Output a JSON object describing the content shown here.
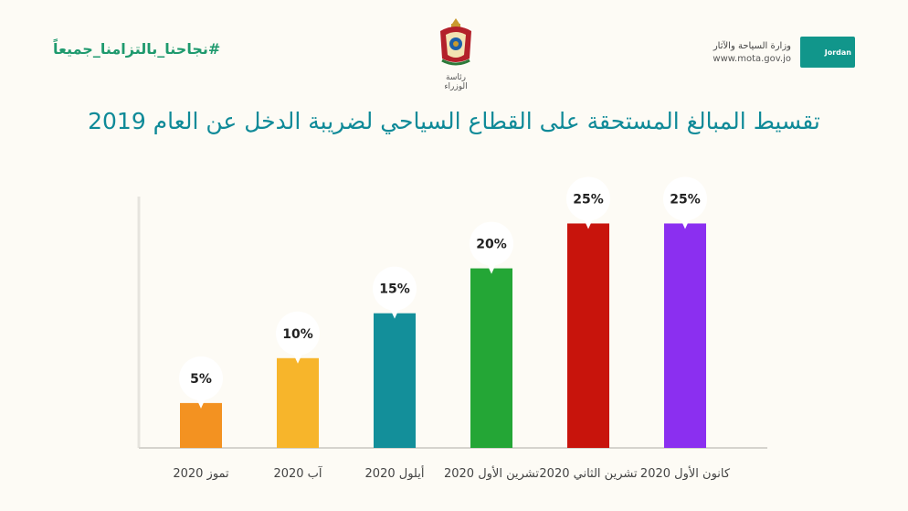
{
  "header": {
    "hashtag": "#نجاحنا_بالتزامنا_جميعاً",
    "center_caption": "رئاسة الوزراء",
    "ministry_name": "وزارة السياحة والآثار",
    "ministry_url": "www.mota.gov.jo",
    "badge_text": "Jordan"
  },
  "colors": {
    "title": "#0f8a98",
    "hashtag": "#1f9a6e"
  },
  "chart_data": {
    "type": "bar",
    "title": "تقسيط المبالغ المستحقة على القطاع السياحي لضريبة الدخل عن العام 2019",
    "categories": [
      "تموز 2020",
      "آب 2020",
      "أيلول 2020",
      "تشرين الأول 2020",
      "تشرين الثاني 2020",
      "كانون الأول 2020"
    ],
    "values": [
      5,
      10,
      15,
      20,
      25,
      25
    ],
    "value_labels": [
      "5%",
      "10%",
      "15%",
      "20%",
      "25%",
      "25%"
    ],
    "colors": [
      "#f39221",
      "#f7b52b",
      "#138f9a",
      "#24a636",
      "#c8140c",
      "#8b2ff0"
    ],
    "ylim": [
      0,
      28
    ],
    "grid": false,
    "legend": "none"
  }
}
